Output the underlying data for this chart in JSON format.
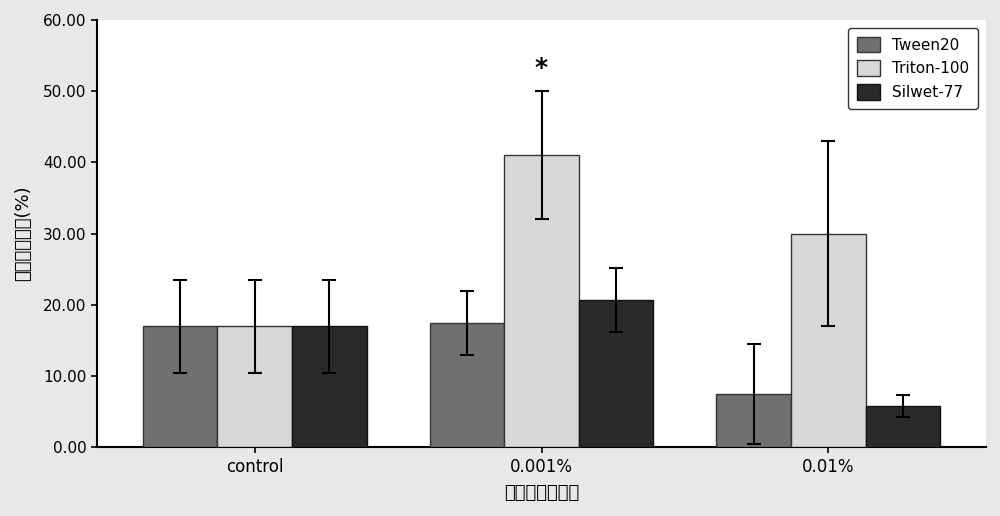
{
  "categories": [
    "control",
    "0.001%",
    "0.01%"
  ],
  "series_order": [
    "Tween20",
    "Triton-100",
    "Silwet-77"
  ],
  "values": {
    "Tween20": [
      17.0,
      17.5,
      7.5
    ],
    "Triton-100": [
      17.0,
      41.0,
      30.0
    ],
    "Silwet-77": [
      17.0,
      20.7,
      5.8
    ]
  },
  "errors_down": {
    "Tween20": [
      6.5,
      4.5,
      7.0
    ],
    "Triton-100": [
      6.5,
      9.0,
      13.0
    ],
    "Silwet-77": [
      6.5,
      4.5,
      1.5
    ]
  },
  "errors_up": {
    "Tween20": [
      6.5,
      4.5,
      7.0
    ],
    "Triton-100": [
      6.5,
      9.0,
      13.0
    ],
    "Silwet-77": [
      6.5,
      4.5,
      1.5
    ]
  },
  "bar_colors": {
    "Tween20": "#707070",
    "Triton-100": "#d8d8d8",
    "Silwet-77": "#2a2a2a"
  },
  "bar_edgecolors": {
    "Tween20": "#333333",
    "Triton-100": "#333333",
    "Silwet-77": "#111111"
  },
  "ylabel": "原球葵存活率(%)",
  "xlabel": "表面活性剂浓度",
  "ylim": [
    0,
    60
  ],
  "yticks": [
    0.0,
    10.0,
    20.0,
    30.0,
    40.0,
    50.0,
    60.0
  ],
  "ytick_labels": [
    "0.00",
    "10.00",
    "20.00",
    "30.00",
    "40.00",
    "50.00",
    "60.00"
  ],
  "star_category": "0.001%",
  "star_series": "Triton-100",
  "star_text": "*",
  "bar_width": 0.26,
  "legend_loc": "upper right",
  "figure_facecolor": "#e8e8e8",
  "axes_facecolor": "#ffffff"
}
